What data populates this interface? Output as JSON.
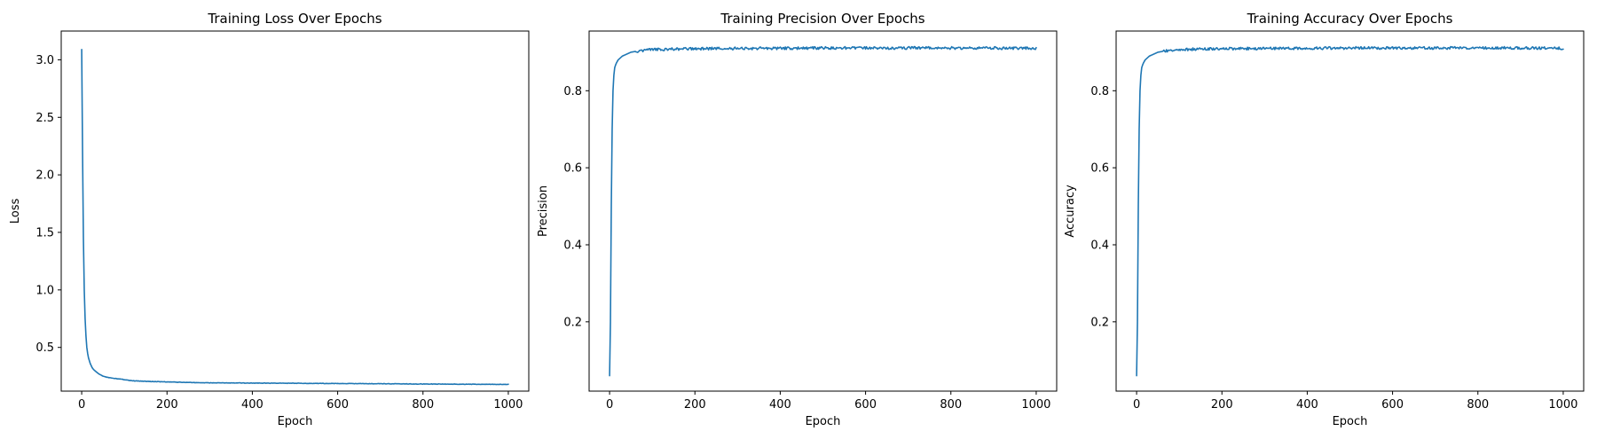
{
  "chart_data": [
    {
      "type": "line",
      "title": "Training Loss Over Epochs",
      "xlabel": "Epoch",
      "ylabel": "Loss",
      "xlim": [
        -48,
        1048
      ],
      "ylim": [
        0.12,
        3.25
      ],
      "xticks": [
        0,
        200,
        400,
        600,
        800,
        1000
      ],
      "yticks": [
        0.5,
        1.0,
        1.5,
        2.0,
        2.5,
        3.0
      ],
      "ytick_labels": [
        "0.5",
        "1.0",
        "1.5",
        "2.0",
        "2.5",
        "3.0"
      ],
      "grid": false,
      "color": "#1f77b4",
      "series": [
        {
          "x": [
            0,
            2,
            4,
            6,
            8,
            10,
            12,
            15,
            20,
            25,
            30,
            40,
            50,
            60,
            70,
            80,
            100,
            120,
            150,
            200,
            250,
            300,
            400,
            500,
            600,
            700,
            800,
            900,
            1000
          ],
          "values": [
            3.09,
            2.2,
            1.45,
            1.0,
            0.75,
            0.6,
            0.5,
            0.42,
            0.36,
            0.32,
            0.3,
            0.27,
            0.25,
            0.24,
            0.235,
            0.23,
            0.22,
            0.21,
            0.205,
            0.2,
            0.195,
            0.192,
            0.19,
            0.188,
            0.186,
            0.184,
            0.182,
            0.18,
            0.178
          ]
        }
      ]
    },
    {
      "type": "line",
      "title": "Training Precision Over Epochs",
      "xlabel": "Epoch",
      "ylabel": "Precision",
      "xlim": [
        -48,
        1048
      ],
      "ylim": [
        0.02,
        0.955
      ],
      "xticks": [
        0,
        200,
        400,
        600,
        800,
        1000
      ],
      "yticks": [
        0.2,
        0.4,
        0.6,
        0.8
      ],
      "ytick_labels": [
        "0.2",
        "0.4",
        "0.6",
        "0.8"
      ],
      "grid": false,
      "color": "#1f77b4",
      "series": [
        {
          "x": [
            0,
            2,
            4,
            6,
            8,
            10,
            12,
            15,
            20,
            25,
            30,
            40,
            50,
            60,
            80,
            100,
            150,
            200,
            300,
            400,
            500,
            600,
            700,
            800,
            900,
            1000
          ],
          "values": [
            0.06,
            0.2,
            0.5,
            0.7,
            0.8,
            0.84,
            0.86,
            0.87,
            0.88,
            0.885,
            0.89,
            0.895,
            0.9,
            0.902,
            0.905,
            0.907,
            0.908,
            0.909,
            0.91,
            0.91,
            0.911,
            0.911,
            0.911,
            0.911,
            0.911,
            0.91
          ]
        }
      ]
    },
    {
      "type": "line",
      "title": "Training Accuracy Over Epochs",
      "xlabel": "Epoch",
      "ylabel": "Accuracy",
      "xlim": [
        -48,
        1048
      ],
      "ylim": [
        0.02,
        0.955
      ],
      "xticks": [
        0,
        200,
        400,
        600,
        800,
        1000
      ],
      "yticks": [
        0.2,
        0.4,
        0.6,
        0.8
      ],
      "ytick_labels": [
        "0.2",
        "0.4",
        "0.6",
        "0.8"
      ],
      "grid": false,
      "color": "#1f77b4",
      "series": [
        {
          "x": [
            0,
            2,
            4,
            6,
            8,
            10,
            12,
            15,
            20,
            25,
            30,
            40,
            50,
            60,
            80,
            100,
            150,
            200,
            300,
            400,
            500,
            600,
            700,
            800,
            900,
            1000
          ],
          "values": [
            0.06,
            0.2,
            0.5,
            0.7,
            0.8,
            0.84,
            0.86,
            0.87,
            0.88,
            0.885,
            0.89,
            0.895,
            0.9,
            0.902,
            0.905,
            0.907,
            0.908,
            0.909,
            0.91,
            0.91,
            0.911,
            0.911,
            0.911,
            0.911,
            0.911,
            0.91
          ]
        }
      ]
    }
  ]
}
